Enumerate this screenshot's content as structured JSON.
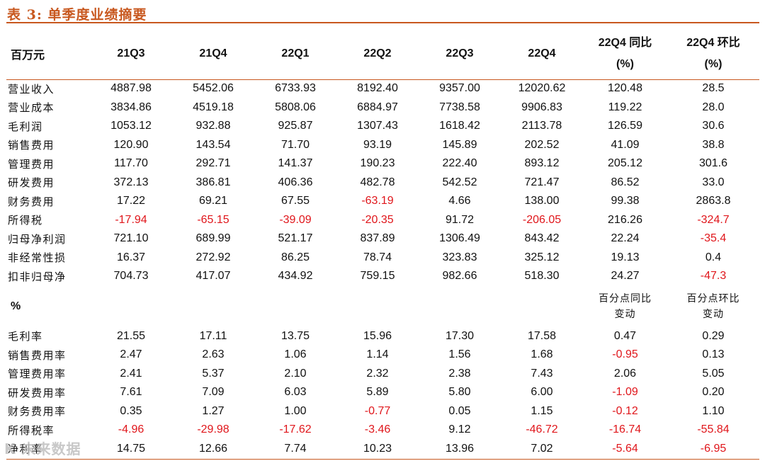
{
  "title": "表 3:  单季度业绩摘要",
  "header": {
    "unit": "百万元",
    "periods": [
      "21Q3",
      "21Q4",
      "22Q1",
      "22Q2",
      "22Q3",
      "22Q4"
    ],
    "yoy_line1": "22Q4 同比",
    "yoy_line2": "(%)",
    "qoq_line1": "22Q4 环比",
    "qoq_line2": "(%)"
  },
  "rows": [
    {
      "label": "营业收入",
      "values": [
        "4887.98",
        "5452.06",
        "6733.93",
        "8192.40",
        "9357.00",
        "12020.62",
        "120.48",
        "28.5"
      ]
    },
    {
      "label": "营业成本",
      "values": [
        "3834.86",
        "4519.18",
        "5808.06",
        "6884.97",
        "7738.58",
        "9906.83",
        "119.22",
        "28.0"
      ]
    },
    {
      "label": "毛利润",
      "values": [
        "1053.12",
        "932.88",
        "925.87",
        "1307.43",
        "1618.42",
        "2113.78",
        "126.59",
        "30.6"
      ]
    },
    {
      "label": "销售费用",
      "values": [
        "120.90",
        "143.54",
        "71.70",
        "93.19",
        "145.89",
        "202.52",
        "41.09",
        "38.8"
      ]
    },
    {
      "label": "管理费用",
      "values": [
        "117.70",
        "292.71",
        "141.37",
        "190.23",
        "222.40",
        "893.12",
        "205.12",
        "301.6"
      ]
    },
    {
      "label": "研发费用",
      "values": [
        "372.13",
        "386.81",
        "406.36",
        "482.78",
        "542.52",
        "721.47",
        "86.52",
        "33.0"
      ]
    },
    {
      "label": "财务费用",
      "values": [
        "17.22",
        "69.21",
        "67.55",
        "-63.19",
        "4.66",
        "138.00",
        "99.38",
        "2863.8"
      ]
    },
    {
      "label": "所得税",
      "values": [
        "-17.94",
        "-65.15",
        "-39.09",
        "-20.35",
        "91.72",
        "-206.05",
        "216.26",
        "-324.7"
      ]
    },
    {
      "label": "归母净利润",
      "values": [
        "721.10",
        "689.99",
        "521.17",
        "837.89",
        "1306.49",
        "843.42",
        "22.24",
        "-35.4"
      ]
    },
    {
      "label": "非经常性损",
      "values": [
        "16.37",
        "272.92",
        "86.25",
        "78.74",
        "323.83",
        "325.12",
        "19.13",
        "0.4"
      ]
    },
    {
      "label": "扣非归母净",
      "values": [
        "704.73",
        "417.07",
        "434.92",
        "759.15",
        "982.66",
        "518.30",
        "24.27",
        "-47.3"
      ]
    }
  ],
  "ratio_header": {
    "unit": "%",
    "yoy_line1": "百分点同比",
    "yoy_line2": "变动",
    "qoq_line1": "百分点环比",
    "qoq_line2": "变动"
  },
  "ratio_rows": [
    {
      "label": "毛利率",
      "values": [
        "21.55",
        "17.11",
        "13.75",
        "15.96",
        "17.30",
        "17.58",
        "0.47",
        "0.29"
      ]
    },
    {
      "label": "销售费用率",
      "values": [
        "2.47",
        "2.63",
        "1.06",
        "1.14",
        "1.56",
        "1.68",
        "-0.95",
        "0.13"
      ]
    },
    {
      "label": "管理费用率",
      "values": [
        "2.41",
        "5.37",
        "2.10",
        "2.32",
        "2.38",
        "7.43",
        "2.06",
        "5.05"
      ]
    },
    {
      "label": "研发费用率",
      "values": [
        "7.61",
        "7.09",
        "6.03",
        "5.89",
        "5.80",
        "6.00",
        "-1.09",
        "0.20"
      ]
    },
    {
      "label": "财务费用率",
      "values": [
        "0.35",
        "1.27",
        "1.00",
        "-0.77",
        "0.05",
        "1.15",
        "-0.12",
        "1.10"
      ]
    },
    {
      "label": "所得税率",
      "values": [
        "-4.96",
        "-29.98",
        "-17.62",
        "-3.46",
        "9.12",
        "-46.72",
        "-16.74",
        "-55.84"
      ]
    },
    {
      "label": "净利率",
      "values": [
        "14.75",
        "12.66",
        "7.74",
        "10.23",
        "13.96",
        "7.02",
        "-5.64",
        "-6.95"
      ]
    }
  ],
  "watermark": "K 未来数据"
}
